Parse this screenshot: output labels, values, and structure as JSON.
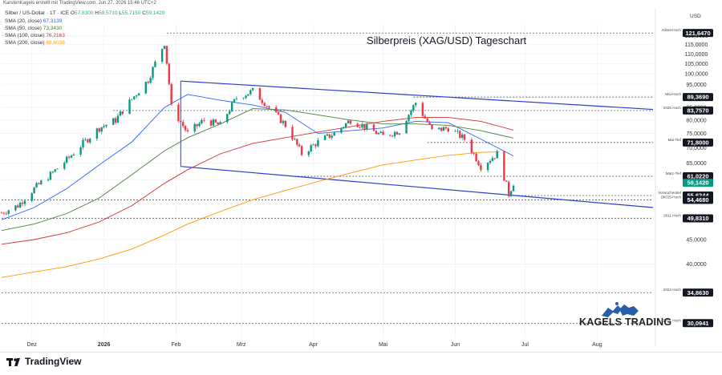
{
  "header": {
    "topline": "KarstenKagels erstellt mit TradingView.com, Jun 27, 2026 15:46 UTC+2",
    "symbol_line": "Silber / US-Dollar · 1T · ICE",
    "ohlc": {
      "o": "57,8300",
      "h": "59,5710",
      "l": "55,7150",
      "c": "59,1420"
    },
    "currency": "USD"
  },
  "legend": [
    {
      "label": "SMA (20, close)",
      "value": "67,3139",
      "color": "#2962ff"
    },
    {
      "label": "SMA (50, close)",
      "value": "73,3430",
      "color": "#4a7d3a"
    },
    {
      "label": "SMA (100, close)",
      "value": "76,2163",
      "color": "#d32f2f"
    },
    {
      "label": "SMA (200, close)",
      "value": "68,6038",
      "color": "#ff9800"
    }
  ],
  "branding": {
    "tradingview": "TradingView",
    "kagels": "KAGELS TRADING"
  },
  "chart_data": {
    "type": "candlestick",
    "title": "Silberpreis (XAG/USD) Tageschart",
    "y_axis": {
      "ticks": [
        "120,0000",
        "115,0000",
        "110,0000",
        "105,0000",
        "100,0000",
        "95,0000",
        "90,0000",
        "85,0000",
        "80,0000",
        "75,0000",
        "70,0000",
        "65,0000",
        "60,0000",
        "55,0000",
        "50,0000",
        "45,0000",
        "40,0000",
        "35,0000",
        "30,0000"
      ],
      "tick_values": [
        120,
        115,
        110,
        105,
        100,
        95,
        90,
        85,
        80,
        75,
        70,
        65,
        60,
        55,
        50,
        45,
        40,
        35,
        30
      ],
      "range": [
        28,
        127
      ]
    },
    "x_axis": {
      "labels": [
        "Dez",
        "2026",
        "Feb",
        "Mrz",
        "Apr",
        "Mai",
        "Jun",
        "Jul",
        "Aug"
      ],
      "start": "2025-11-18",
      "end": "2026-08-25"
    },
    "levels": [
      {
        "name": "Allzeit-Hoch",
        "value": 121.647,
        "label": "121,6470"
      },
      {
        "name": "Mai-Hoch",
        "value": 89.369,
        "label": "89,3690"
      },
      {
        "name": "2025 Hoch",
        "value": 83.757,
        "label": "83,7570"
      },
      {
        "name": "Mai-Tief",
        "value": 71.8,
        "label": "71,8000"
      },
      {
        "name": "März-Tief",
        "value": 61.022,
        "label": "61,0220"
      },
      {
        "name": "Vorwochentief",
        "value": 55.6244,
        "label": "55,6244"
      },
      {
        "name": "Okt'25-Hoch",
        "value": 54.468,
        "label": "54,4680"
      },
      {
        "name": "2011 Hoch",
        "value": 49.831,
        "label": "49,8310"
      },
      {
        "name": "2024 Hoch",
        "value": 34.863,
        "label": "34,8630"
      },
      {
        "name": "2021 Hoch",
        "value": 30.0941,
        "label": "30,0941"
      }
    ],
    "current_price": {
      "value": 59.142,
      "label": "59,1420"
    },
    "channel": {
      "upper": [
        {
          "date": "2026-02-03",
          "v": 96.5
        },
        {
          "date": "2026-08-25",
          "v": 84.2
        }
      ],
      "lower": [
        {
          "date": "2026-02-03",
          "v": 64.0
        },
        {
          "date": "2026-08-25",
          "v": 52.5
        }
      ]
    },
    "closes": [
      {
        "date": "2025-11-18",
        "c": 51.2
      },
      {
        "date": "2025-11-25",
        "c": 53.0
      },
      {
        "date": "2025-12-02",
        "c": 57.5
      },
      {
        "date": "2025-12-09",
        "c": 61.5
      },
      {
        "date": "2025-12-16",
        "c": 66.0
      },
      {
        "date": "2025-12-23",
        "c": 71.5
      },
      {
        "date": "2025-12-30",
        "c": 77.0
      },
      {
        "date": "2026-01-06",
        "c": 80.0
      },
      {
        "date": "2026-01-13",
        "c": 88.5
      },
      {
        "date": "2026-01-20",
        "c": 97.0
      },
      {
        "date": "2026-01-27",
        "c": 116.0
      },
      {
        "date": "2026-01-30",
        "c": 85.0
      },
      {
        "date": "2026-02-06",
        "c": 75.0
      },
      {
        "date": "2026-02-13",
        "c": 80.0
      },
      {
        "date": "2026-02-20",
        "c": 78.0
      },
      {
        "date": "2026-02-27",
        "c": 89.0
      },
      {
        "date": "2026-03-06",
        "c": 92.0
      },
      {
        "date": "2026-03-13",
        "c": 85.0
      },
      {
        "date": "2026-03-20",
        "c": 78.0
      },
      {
        "date": "2026-03-27",
        "c": 68.0
      },
      {
        "date": "2026-04-03",
        "c": 72.0
      },
      {
        "date": "2026-04-10",
        "c": 75.0
      },
      {
        "date": "2026-04-17",
        "c": 80.0
      },
      {
        "date": "2026-04-24",
        "c": 77.0
      },
      {
        "date": "2026-05-01",
        "c": 74.0
      },
      {
        "date": "2026-05-08",
        "c": 76.0
      },
      {
        "date": "2026-05-15",
        "c": 87.0
      },
      {
        "date": "2026-05-22",
        "c": 76.0
      },
      {
        "date": "2026-05-29",
        "c": 77.0
      },
      {
        "date": "2026-06-05",
        "c": 73.0
      },
      {
        "date": "2026-06-12",
        "c": 64.0
      },
      {
        "date": "2026-06-19",
        "c": 68.0
      },
      {
        "date": "2026-06-24",
        "c": 56.0
      },
      {
        "date": "2026-06-26",
        "c": 59.142
      }
    ],
    "sma": [
      {
        "period": 20,
        "color": "#2962ff",
        "points": [
          {
            "date": "2025-11-18",
            "v": 49.5
          },
          {
            "date": "2025-12-02",
            "v": 52.5
          },
          {
            "date": "2025-12-16",
            "v": 57.5
          },
          {
            "date": "2025-12-30",
            "v": 64.5
          },
          {
            "date": "2026-01-13",
            "v": 72.0
          },
          {
            "date": "2026-01-27",
            "v": 85.0
          },
          {
            "date": "2026-02-06",
            "v": 90.5
          },
          {
            "date": "2026-02-20",
            "v": 88.0
          },
          {
            "date": "2026-03-06",
            "v": 86.0
          },
          {
            "date": "2026-03-20",
            "v": 83.0
          },
          {
            "date": "2026-04-03",
            "v": 75.0
          },
          {
            "date": "2026-04-17",
            "v": 76.0
          },
          {
            "date": "2026-05-01",
            "v": 77.0
          },
          {
            "date": "2026-05-15",
            "v": 79.5
          },
          {
            "date": "2026-05-29",
            "v": 79.0
          },
          {
            "date": "2026-06-12",
            "v": 73.0
          },
          {
            "date": "2026-06-26",
            "v": 67.3139
          }
        ]
      },
      {
        "period": 50,
        "color": "#4a7d3a",
        "points": [
          {
            "date": "2025-11-18",
            "v": 47.0
          },
          {
            "date": "2025-12-02",
            "v": 48.5
          },
          {
            "date": "2025-12-16",
            "v": 51.0
          },
          {
            "date": "2025-12-30",
            "v": 55.0
          },
          {
            "date": "2026-01-13",
            "v": 61.5
          },
          {
            "date": "2026-01-27",
            "v": 69.0
          },
          {
            "date": "2026-02-06",
            "v": 73.5
          },
          {
            "date": "2026-02-20",
            "v": 78.5
          },
          {
            "date": "2026-03-06",
            "v": 84.5
          },
          {
            "date": "2026-03-20",
            "v": 84.0
          },
          {
            "date": "2026-04-03",
            "v": 82.0
          },
          {
            "date": "2026-04-17",
            "v": 80.0
          },
          {
            "date": "2026-05-01",
            "v": 78.5
          },
          {
            "date": "2026-05-15",
            "v": 78.5
          },
          {
            "date": "2026-05-29",
            "v": 78.0
          },
          {
            "date": "2026-06-12",
            "v": 76.0
          },
          {
            "date": "2026-06-26",
            "v": 73.343
          }
        ]
      },
      {
        "period": 100,
        "color": "#d32f2f",
        "points": [
          {
            "date": "2025-11-18",
            "v": 44.0
          },
          {
            "date": "2025-12-02",
            "v": 45.0
          },
          {
            "date": "2025-12-16",
            "v": 46.5
          },
          {
            "date": "2025-12-30",
            "v": 49.0
          },
          {
            "date": "2026-01-13",
            "v": 53.0
          },
          {
            "date": "2026-01-27",
            "v": 59.0
          },
          {
            "date": "2026-02-06",
            "v": 63.0
          },
          {
            "date": "2026-02-20",
            "v": 68.0
          },
          {
            "date": "2026-03-06",
            "v": 71.5
          },
          {
            "date": "2026-03-20",
            "v": 73.5
          },
          {
            "date": "2026-04-03",
            "v": 75.5
          },
          {
            "date": "2026-04-17",
            "v": 77.5
          },
          {
            "date": "2026-05-01",
            "v": 79.5
          },
          {
            "date": "2026-05-15",
            "v": 81.0
          },
          {
            "date": "2026-05-29",
            "v": 81.0
          },
          {
            "date": "2026-06-12",
            "v": 79.5
          },
          {
            "date": "2026-06-26",
            "v": 76.2163
          }
        ]
      },
      {
        "period": 200,
        "color": "#ff9800",
        "points": [
          {
            "date": "2025-11-18",
            "v": 37.5
          },
          {
            "date": "2025-12-02",
            "v": 38.5
          },
          {
            "date": "2025-12-16",
            "v": 39.5
          },
          {
            "date": "2025-12-30",
            "v": 41.0
          },
          {
            "date": "2026-01-13",
            "v": 43.0
          },
          {
            "date": "2026-01-27",
            "v": 46.0
          },
          {
            "date": "2026-02-06",
            "v": 48.5
          },
          {
            "date": "2026-02-20",
            "v": 51.5
          },
          {
            "date": "2026-03-06",
            "v": 54.5
          },
          {
            "date": "2026-03-20",
            "v": 57.0
          },
          {
            "date": "2026-04-03",
            "v": 59.5
          },
          {
            "date": "2026-04-17",
            "v": 62.0
          },
          {
            "date": "2026-05-01",
            "v": 64.5
          },
          {
            "date": "2026-05-15",
            "v": 66.0
          },
          {
            "date": "2026-05-29",
            "v": 67.5
          },
          {
            "date": "2026-06-12",
            "v": 68.5
          },
          {
            "date": "2026-06-20",
            "v": 68.6038
          }
        ]
      }
    ]
  }
}
